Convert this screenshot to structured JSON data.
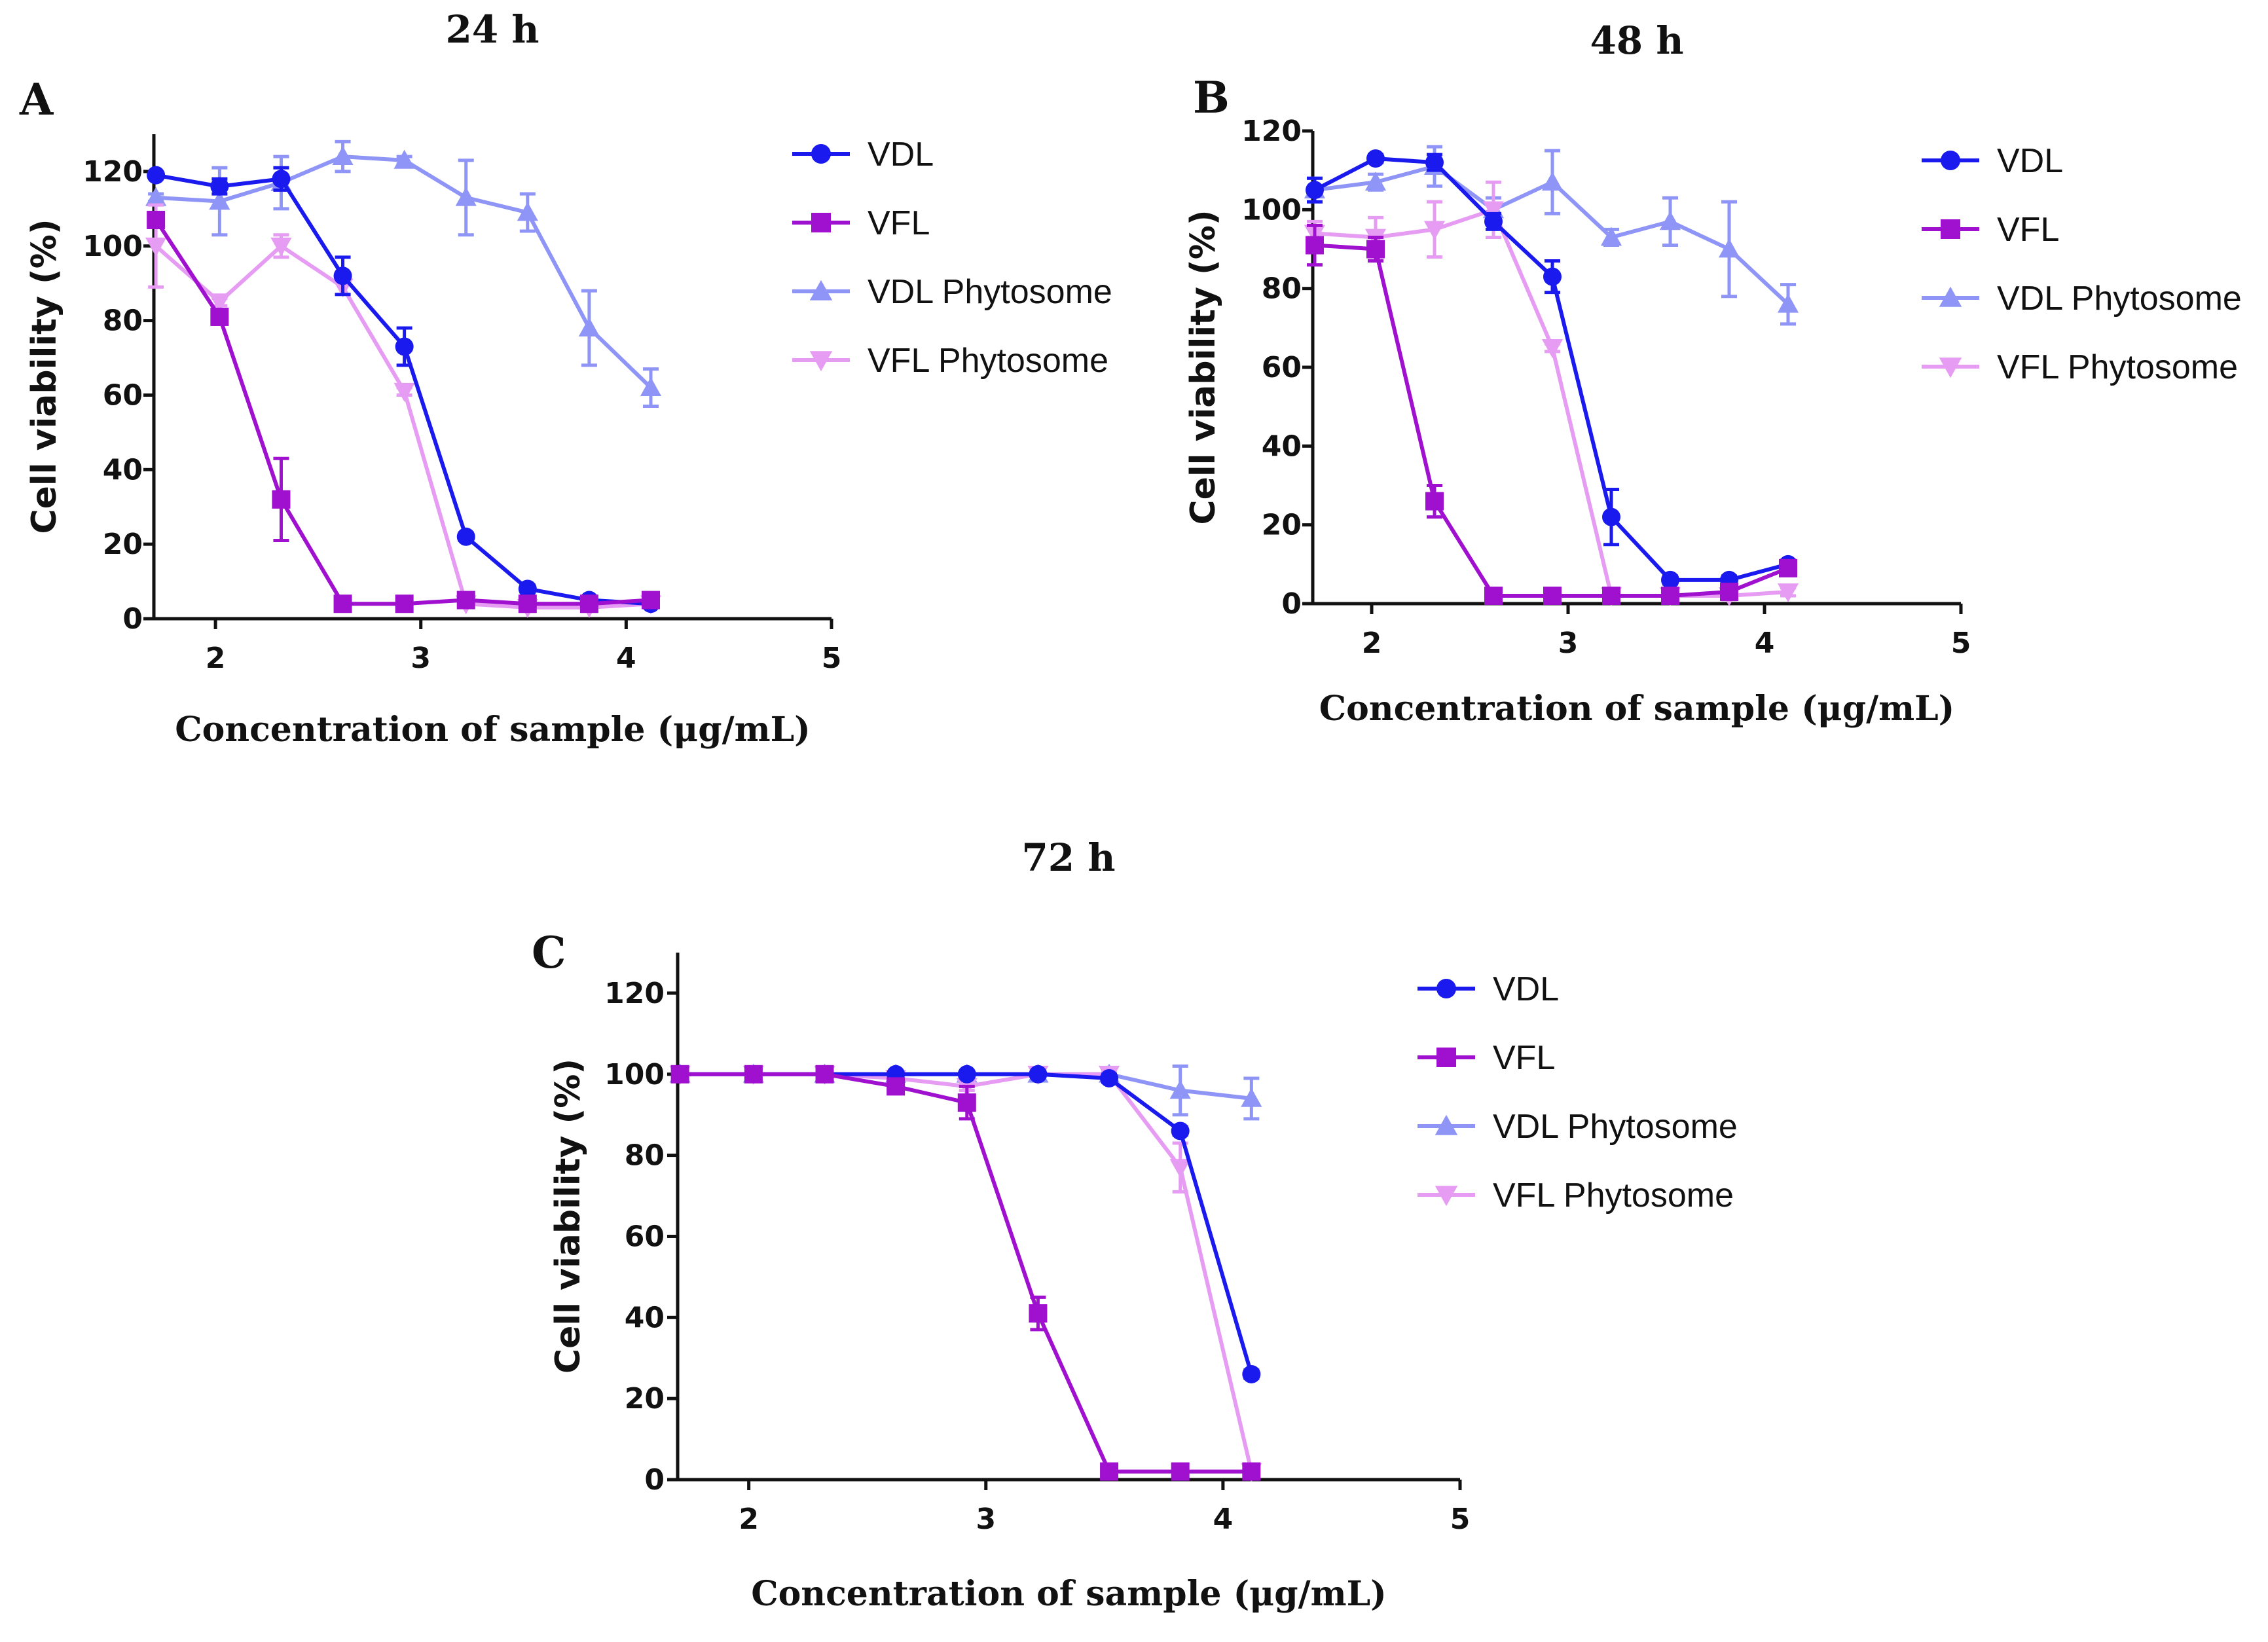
{
  "figure": {
    "background": "#ffffff"
  },
  "colors": {
    "VDL": "#1a1aee",
    "VFL": "#9f10cf",
    "VDL Phytosome": "#8f95f6",
    "VFL Phytosome": "#e79cf4"
  },
  "markers": {
    "VDL": "circle",
    "VFL": "square",
    "VDL Phytosome": "triangle-up",
    "VFL Phytosome": "triangle-down"
  },
  "chart_data": [
    {
      "panel": "A",
      "title": "24 h",
      "type": "line",
      "xlabel": "Concentration of sample (μg/mL)",
      "ylabel": "Cell viability (%)",
      "xlim": [
        1.7,
        5
      ],
      "ylim": [
        0,
        130
      ],
      "xticks": [
        2,
        3,
        4,
        5
      ],
      "yticks": [
        0,
        20,
        40,
        60,
        80,
        100,
        120
      ],
      "grid": false,
      "legend": "right",
      "x": [
        1.71,
        2.02,
        2.32,
        2.62,
        2.92,
        3.22,
        3.52,
        3.82,
        4.12
      ],
      "series": [
        {
          "name": "VDL",
          "values": [
            119,
            116,
            118,
            92,
            73,
            22,
            8,
            5,
            4
          ],
          "errors": [
            0,
            2,
            3,
            5,
            5,
            1,
            1,
            1,
            1
          ]
        },
        {
          "name": "VFL",
          "values": [
            107,
            81,
            32,
            4,
            4,
            5,
            4,
            4,
            5
          ],
          "errors": [
            2,
            2,
            11,
            1,
            1,
            1,
            1,
            1,
            1
          ]
        },
        {
          "name": "VDL Phytosome",
          "values": [
            113,
            112,
            117,
            124,
            123,
            113,
            109,
            78,
            62
          ],
          "errors": [
            1,
            9,
            7,
            4,
            1,
            10,
            5,
            10,
            5
          ]
        },
        {
          "name": "VFL Phytosome",
          "values": [
            100,
            85,
            100,
            89,
            61,
            4,
            3,
            3,
            4
          ],
          "errors": [
            11,
            1,
            3,
            2,
            1,
            1,
            1,
            1,
            1
          ]
        }
      ]
    },
    {
      "panel": "B",
      "title": "48 h",
      "type": "line",
      "xlabel": "Concentration of sample (μg/mL)",
      "ylabel": "Cell viability (%)",
      "xlim": [
        1.7,
        5
      ],
      "ylim": [
        0,
        120
      ],
      "xticks": [
        2,
        3,
        4,
        5
      ],
      "yticks": [
        0,
        20,
        40,
        60,
        80,
        100,
        120
      ],
      "grid": false,
      "legend": "right",
      "x": [
        1.71,
        2.02,
        2.32,
        2.62,
        2.92,
        3.22,
        3.52,
        3.82,
        4.12
      ],
      "series": [
        {
          "name": "VDL",
          "values": [
            105,
            113,
            112,
            97,
            83,
            22,
            6,
            6,
            10
          ],
          "errors": [
            3,
            1,
            2,
            2,
            4,
            7,
            1,
            1,
            1
          ]
        },
        {
          "name": "VFL",
          "values": [
            91,
            90,
            26,
            2,
            2,
            2,
            2,
            3,
            9
          ],
          "errors": [
            5,
            3,
            4,
            1,
            1,
            1,
            1,
            1,
            1
          ]
        },
        {
          "name": "VDL Phytosome",
          "values": [
            105,
            107,
            111,
            100,
            107,
            93,
            97,
            90,
            76
          ],
          "errors": [
            3,
            2,
            5,
            3,
            8,
            2,
            6,
            12,
            5
          ]
        },
        {
          "name": "VFL Phytosome",
          "values": [
            94,
            93,
            95,
            100,
            65,
            2,
            2,
            2,
            3
          ],
          "errors": [
            3,
            5,
            7,
            7,
            1,
            1,
            1,
            1,
            1
          ]
        }
      ]
    },
    {
      "panel": "C",
      "title": "72 h",
      "type": "line",
      "xlabel": "Concentration of sample (μg/mL)",
      "ylabel": "Cell viability (%)",
      "xlim": [
        1.7,
        5
      ],
      "ylim": [
        0,
        130
      ],
      "xticks": [
        2,
        3,
        4,
        5
      ],
      "yticks": [
        0,
        20,
        40,
        60,
        80,
        100,
        120
      ],
      "grid": false,
      "legend": "right",
      "x": [
        1.71,
        2.02,
        2.32,
        2.62,
        2.92,
        3.22,
        3.52,
        3.82,
        4.12
      ],
      "series": [
        {
          "name": "VDL",
          "values": [
            100,
            100,
            100,
            100,
            100,
            100,
            99,
            86,
            26
          ],
          "errors": [
            0,
            0,
            0,
            0,
            0,
            0,
            1,
            1,
            1
          ]
        },
        {
          "name": "VFL",
          "values": [
            100,
            100,
            100,
            97,
            93,
            41,
            2,
            2,
            2
          ],
          "errors": [
            0,
            0,
            0,
            1,
            4,
            4,
            1,
            1,
            1
          ]
        },
        {
          "name": "VDL Phytosome",
          "values": [
            100,
            100,
            100,
            100,
            100,
            100,
            100,
            96,
            94
          ],
          "errors": [
            0,
            0,
            0,
            0,
            0,
            0,
            0,
            6,
            5
          ]
        },
        {
          "name": "VFL Phytosome",
          "values": [
            100,
            100,
            100,
            99,
            97,
            100,
            100,
            77,
            2
          ],
          "errors": [
            0,
            0,
            0,
            0,
            1,
            0,
            1,
            6,
            1
          ]
        }
      ]
    }
  ]
}
